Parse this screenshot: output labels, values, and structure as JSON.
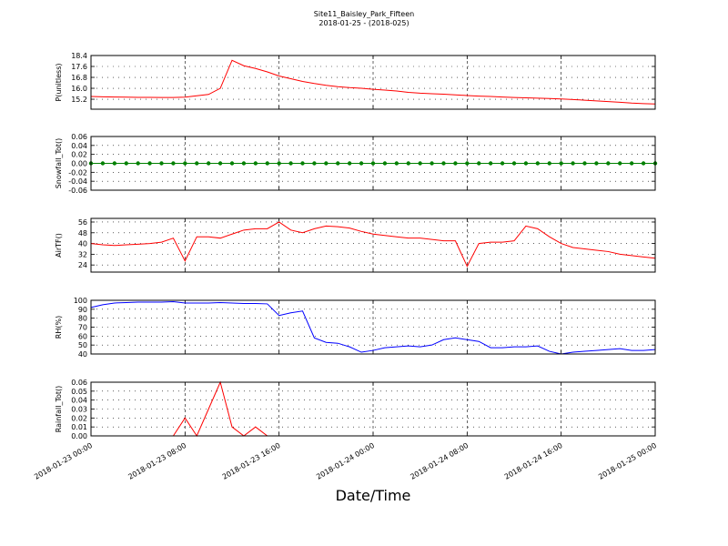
{
  "chart_data": [
    {
      "type": "line",
      "title": "Site11_Baisley_Park_Fifteen",
      "subtitle": "2018-01-25 - (2018-025)",
      "ylabel": "P(unitless)",
      "color": "#ff0000",
      "xlim": [
        0,
        48
      ],
      "xticks": [
        0,
        8,
        16,
        24,
        32,
        40,
        48
      ],
      "ylim": [
        14.47,
        18.4
      ],
      "yticks": [
        15.2,
        {
          "value": 16.0,
          "label": "16.0"
        },
        16.8,
        17.6,
        18.4
      ],
      "grid": true,
      "x": [
        0,
        1,
        2,
        3,
        4,
        5,
        6,
        7,
        8,
        9,
        10,
        11,
        12,
        13,
        14,
        15,
        16,
        17,
        18,
        19,
        20,
        21,
        22,
        23,
        24,
        25,
        26,
        27,
        28,
        29,
        30,
        31,
        32,
        33,
        34,
        35,
        36,
        37,
        38,
        39,
        40,
        41,
        42,
        43,
        44,
        45,
        46,
        47,
        48
      ],
      "values": [
        15.4,
        15.38,
        15.36,
        15.35,
        15.34,
        15.34,
        15.33,
        15.33,
        15.35,
        15.45,
        15.55,
        16.0,
        18.05,
        17.65,
        17.45,
        17.2,
        16.9,
        16.7,
        16.5,
        16.35,
        16.22,
        16.12,
        16.05,
        16.0,
        15.93,
        15.87,
        15.8,
        15.7,
        15.64,
        15.6,
        15.57,
        15.52,
        15.47,
        15.43,
        15.4,
        15.36,
        15.33,
        15.3,
        15.28,
        15.25,
        15.22,
        15.18,
        15.13,
        15.08,
        15.03,
        14.98,
        14.92,
        14.88,
        14.85
      ]
    },
    {
      "type": "line",
      "ylabel": "Snowfall_Tot()",
      "color": "#008000",
      "markers": true,
      "xlim": [
        0,
        48
      ],
      "xticks": [
        0,
        8,
        16,
        24,
        32,
        40,
        48
      ],
      "ylim": [
        -0.06,
        0.06
      ],
      "yticks": [
        -0.06,
        -0.04,
        -0.02,
        {
          "value": 0,
          "label": "0.00"
        },
        0.02,
        0.04,
        0.06
      ],
      "grid": true,
      "x": [
        0,
        1,
        2,
        3,
        4,
        5,
        6,
        7,
        8,
        9,
        10,
        11,
        12,
        13,
        14,
        15,
        16,
        17,
        18,
        19,
        20,
        21,
        22,
        23,
        24,
        25,
        26,
        27,
        28,
        29,
        30,
        31,
        32,
        33,
        34,
        35,
        36,
        37,
        38,
        39,
        40,
        41,
        42,
        43,
        44,
        45,
        46,
        47,
        48
      ],
      "values": [
        0,
        0,
        0,
        0,
        0,
        0,
        0,
        0,
        0,
        0,
        0,
        0,
        0,
        0,
        0,
        0,
        0,
        0,
        0,
        0,
        0,
        0,
        0,
        0,
        0,
        0,
        0,
        0,
        0,
        0,
        0,
        0,
        0,
        0,
        0,
        0,
        0,
        0,
        0,
        0,
        0,
        0,
        0,
        0,
        0,
        0,
        0,
        0,
        0
      ]
    },
    {
      "type": "line",
      "ylabel": "AirTF()",
      "color": "#ff0000",
      "xlim": [
        0,
        48
      ],
      "xticks": [
        0,
        8,
        16,
        24,
        32,
        40,
        48
      ],
      "ylim": [
        18.7,
        58.7
      ],
      "yticks": [
        24,
        32,
        40,
        48,
        56
      ],
      "grid": true,
      "x": [
        0,
        1,
        2,
        3,
        4,
        5,
        6,
        7,
        8,
        9,
        10,
        11,
        12,
        13,
        14,
        15,
        16,
        17,
        18,
        19,
        20,
        21,
        22,
        23,
        24,
        25,
        26,
        27,
        28,
        29,
        30,
        31,
        32,
        33,
        34,
        35,
        36,
        37,
        38,
        39,
        40,
        41,
        42,
        43,
        44,
        45,
        46,
        47,
        48
      ],
      "values": [
        40,
        39,
        38.5,
        39,
        39.5,
        40,
        41,
        44,
        27,
        45,
        45,
        44,
        47,
        50,
        51,
        51,
        56,
        50,
        48,
        51,
        53,
        52.5,
        51.5,
        49,
        47,
        46,
        45,
        44,
        44,
        43,
        42,
        42,
        23,
        40,
        41,
        41,
        42,
        53,
        51,
        45,
        40,
        37,
        36,
        35,
        34,
        32,
        31,
        30,
        29
      ]
    },
    {
      "type": "line",
      "ylabel": "RH(%)",
      "color": "#0000ff",
      "xlim": [
        0,
        48
      ],
      "xticks": [
        0,
        8,
        16,
        24,
        32,
        40,
        48
      ],
      "ylim": [
        40,
        100
      ],
      "yticks": [
        40,
        50,
        60,
        70,
        80,
        90,
        100
      ],
      "grid": true,
      "x": [
        0,
        1,
        2,
        3,
        4,
        5,
        6,
        7,
        8,
        9,
        10,
        11,
        12,
        13,
        14,
        15,
        16,
        17,
        18,
        19,
        20,
        21,
        22,
        23,
        24,
        25,
        26,
        27,
        28,
        29,
        30,
        31,
        32,
        33,
        34,
        35,
        36,
        37,
        38,
        39,
        40,
        41,
        42,
        43,
        44,
        45,
        46,
        47,
        48
      ],
      "values": [
        92,
        95,
        97,
        97.5,
        98,
        98,
        98,
        98.5,
        97,
        97,
        97,
        97.5,
        97,
        96.5,
        96.5,
        96,
        83,
        86,
        88,
        58,
        53,
        52,
        48,
        42,
        44,
        47,
        48,
        49,
        48,
        50,
        56,
        58,
        56,
        54,
        47,
        47,
        48,
        48,
        49,
        43,
        40,
        42,
        43,
        44,
        45,
        46,
        44,
        44,
        45
      ]
    },
    {
      "type": "line",
      "ylabel": "Rainfall_Tot()",
      "xlabel": "Date/Time",
      "color": "#ff0000",
      "xlim": [
        0,
        48
      ],
      "xticks": [
        {
          "value": 0,
          "label": "2018-01-23 00:00"
        },
        {
          "value": 8,
          "label": "2018-01-23 08:00"
        },
        {
          "value": 16,
          "label": "2018-01-23 16:00"
        },
        {
          "value": 24,
          "label": "2018-01-24 00:00"
        },
        {
          "value": 32,
          "label": "2018-01-24 08:00"
        },
        {
          "value": 40,
          "label": "2018-01-24 16:00"
        },
        {
          "value": 48,
          "label": "2018-01-25 00:00"
        }
      ],
      "ylim": [
        0,
        0.06
      ],
      "yticks": [
        {
          "value": 0,
          "label": "0.00"
        },
        0.01,
        0.02,
        0.03,
        0.04,
        0.05,
        0.06
      ],
      "grid": true,
      "x": [
        0,
        1,
        2,
        3,
        4,
        5,
        6,
        7,
        8,
        9,
        10,
        11,
        12,
        13,
        14,
        15,
        16,
        17,
        18,
        19,
        20,
        21,
        22,
        23,
        24,
        25,
        26,
        27,
        28,
        29,
        30,
        31,
        32,
        33,
        34,
        35,
        36,
        37,
        38,
        39,
        40,
        41,
        42,
        43,
        44,
        45,
        46,
        47,
        48
      ],
      "values": [
        0,
        0,
        0,
        0,
        0,
        0,
        0,
        0,
        0.02,
        0,
        0.03,
        0.06,
        0.01,
        0,
        0.01,
        0,
        0,
        0,
        0,
        0,
        0,
        0,
        0,
        0,
        0,
        0,
        0,
        0,
        0,
        0,
        0,
        0,
        0,
        0,
        0,
        0,
        0,
        0,
        0,
        0,
        0,
        0,
        0,
        0,
        0,
        0,
        0,
        0,
        0
      ]
    }
  ]
}
